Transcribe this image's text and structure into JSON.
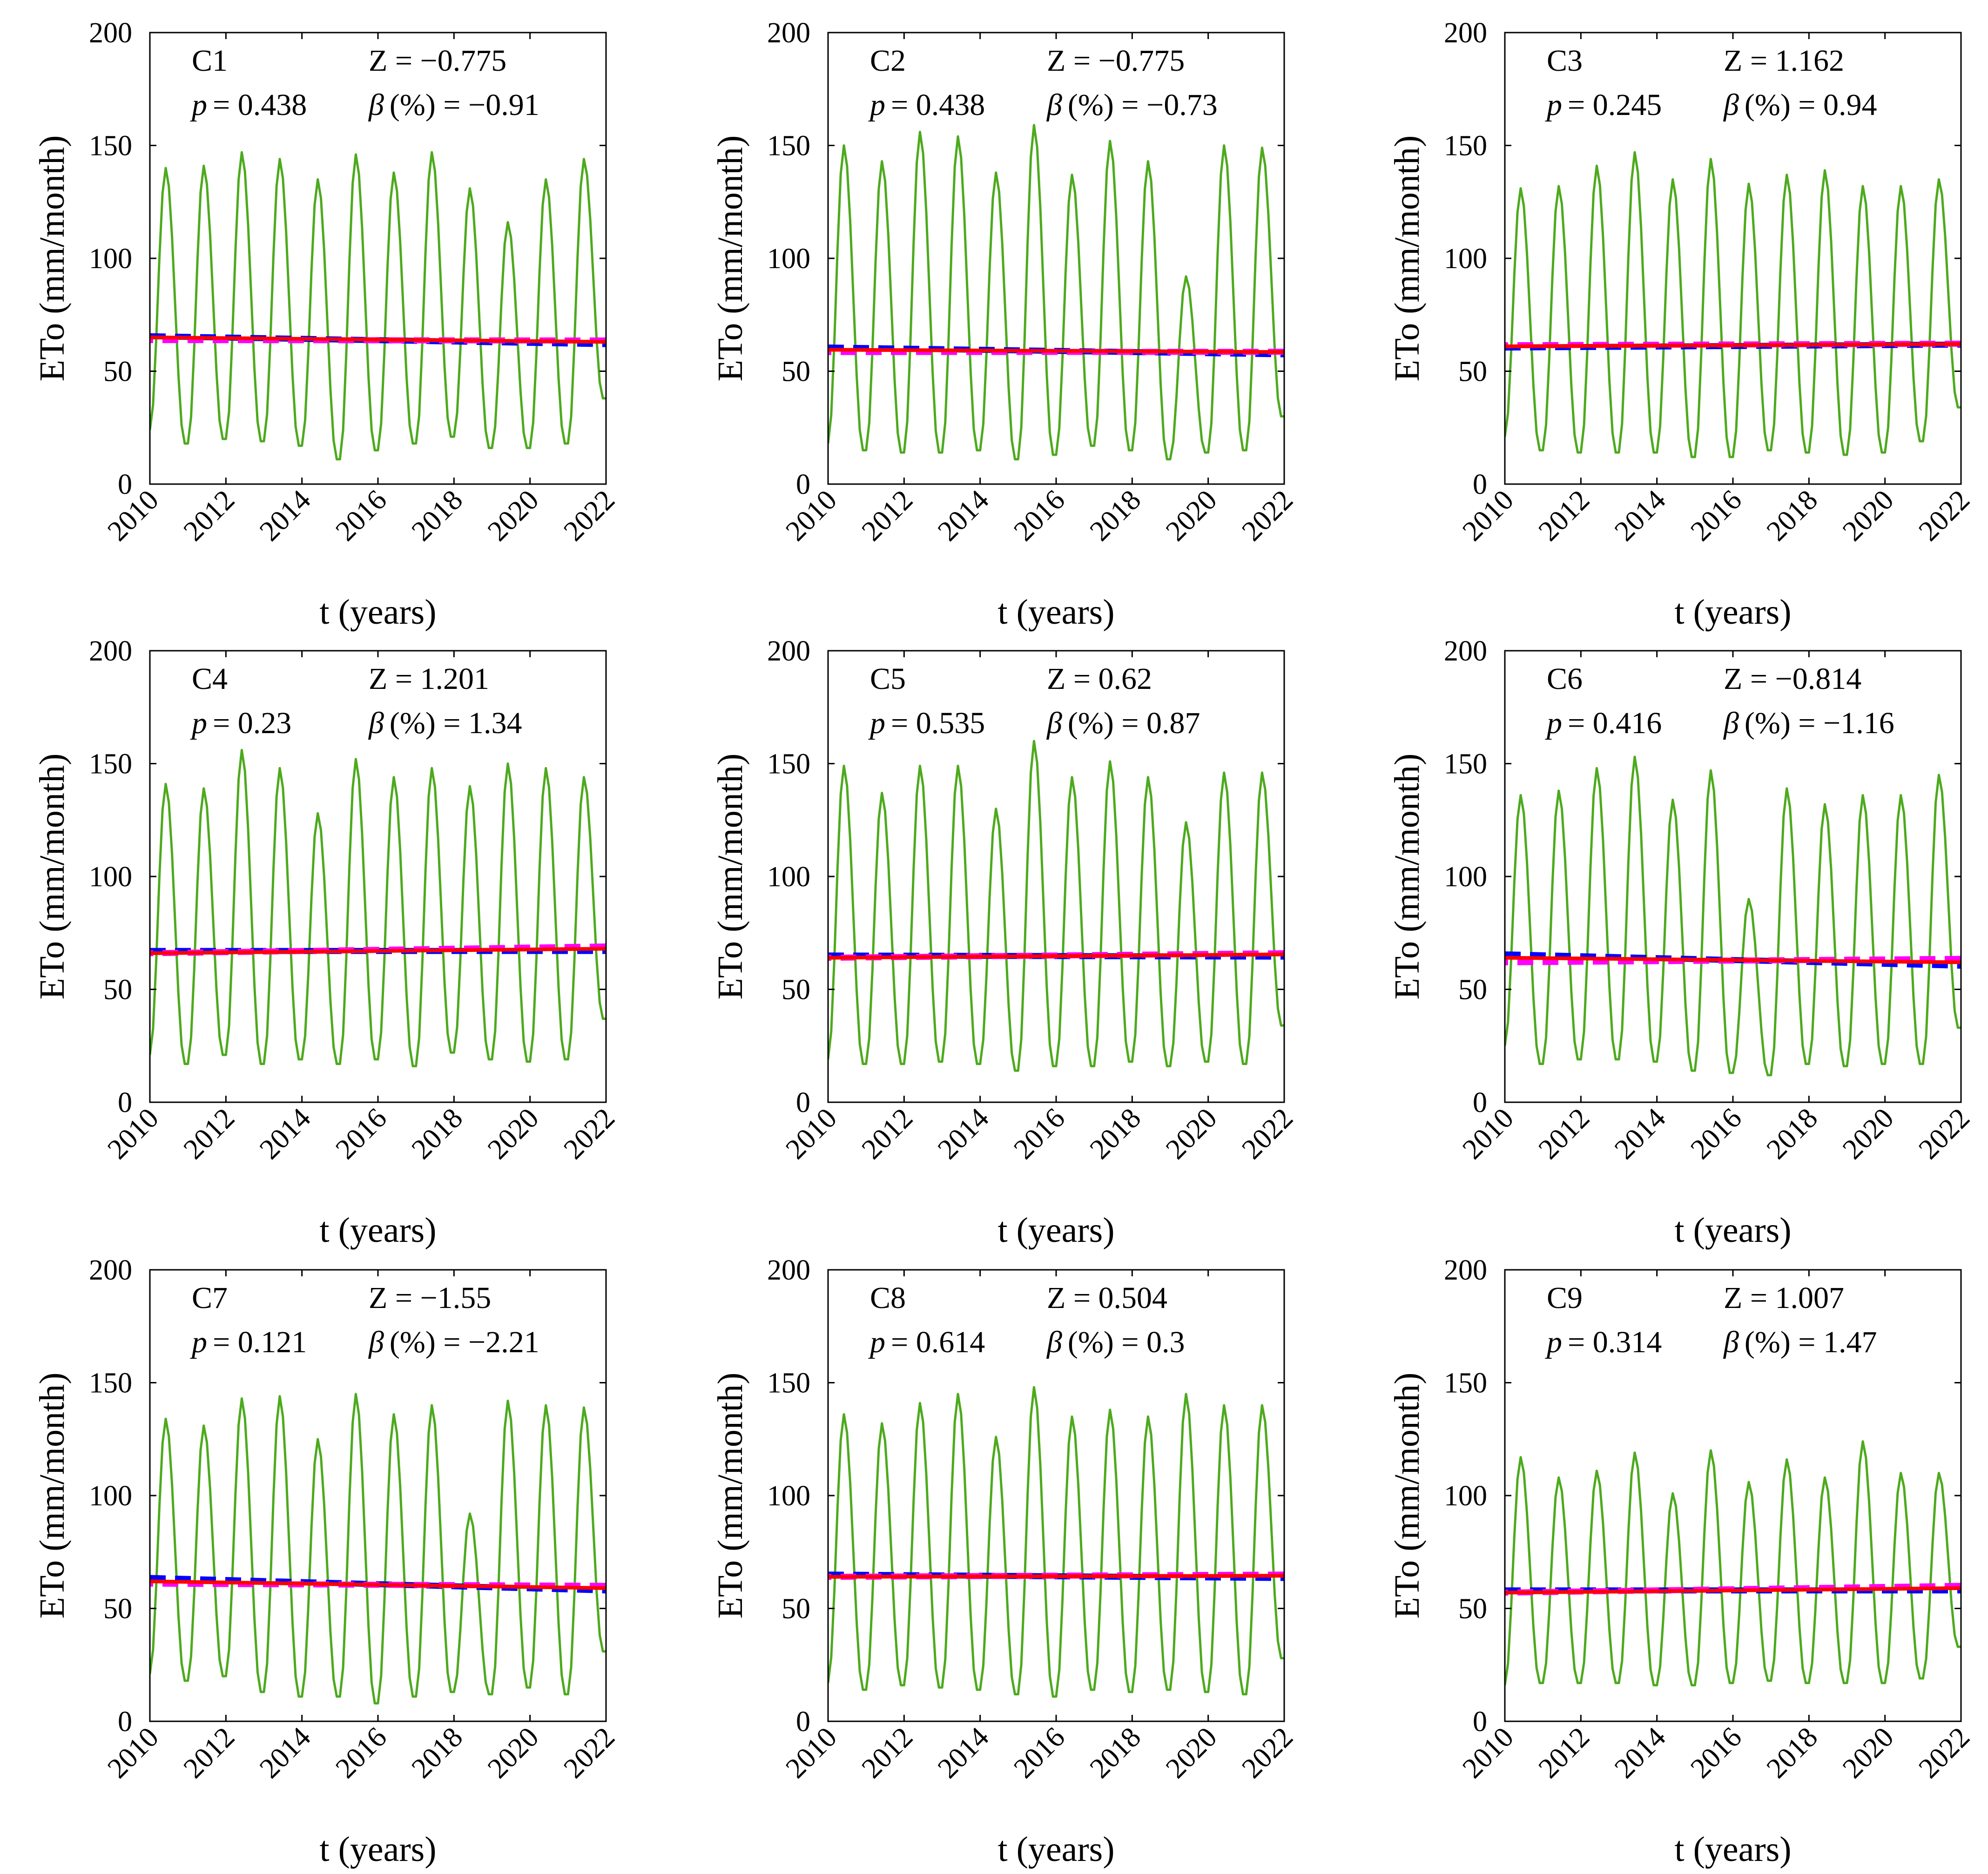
{
  "colors": {
    "eto": "#4daa1e",
    "trend": "#ff0000",
    "dashed_blue": "#0000ff",
    "dashed_magenta": "#ff00ff",
    "axis": "#000000"
  },
  "chart_data": [
    {
      "type": "line",
      "id": "C1",
      "label": "C1",
      "z_text": "Z = −0.775",
      "p_text": "= 0.438",
      "beta_text": "(%) = −0.91",
      "amp": 1.0,
      "trend": [
        65,
        63
      ],
      "blue": [
        65.5,
        62.0
      ],
      "magenta": [
        63.8,
        63.6
      ],
      "xlim": [
        2010,
        2022
      ],
      "ylim": [
        0,
        200
      ],
      "xlabel": "t (years)",
      "ylabel": "ETo (mm/month)",
      "x_ticks": [
        "2010",
        "2012",
        "2014",
        "2016",
        "2018",
        "2020",
        "2022"
      ],
      "y_ticks": [
        "0",
        "50",
        "100",
        "150",
        "200"
      ],
      "peaks": [
        140,
        141,
        147,
        144,
        135,
        146,
        138,
        147,
        131,
        116,
        135,
        144
      ],
      "troughs": [
        24,
        18,
        20,
        19,
        17,
        11,
        15,
        18,
        21,
        16,
        16,
        18,
        38
      ]
    },
    {
      "type": "line",
      "id": "C2",
      "label": "C2",
      "z_text": "Z = −0.775",
      "p_text": "= 0.438",
      "beta_text": "(%) = −0.73",
      "amp": 1.0,
      "trend": [
        59.5,
        58.5
      ],
      "blue": [
        60.5,
        57.5
      ],
      "magenta": [
        58.5,
        58.6
      ],
      "xlim": [
        2010,
        2022
      ],
      "ylim": [
        0,
        200
      ],
      "xlabel": "t (years)",
      "ylabel": "ETo (mm/month)",
      "x_ticks": [
        "2010",
        "2012",
        "2014",
        "2016",
        "2018",
        "2020",
        "2022"
      ],
      "y_ticks": [
        "0",
        "50",
        "100",
        "150",
        "200"
      ],
      "peaks": [
        150,
        143,
        156,
        154,
        138,
        159,
        137,
        152,
        143,
        92,
        150,
        149
      ],
      "troughs": [
        18,
        15,
        14,
        14,
        15,
        11,
        13,
        17,
        15,
        11,
        14,
        15,
        30
      ]
    },
    {
      "type": "line",
      "id": "C3",
      "label": "C3",
      "z_text": "Z = 1.162",
      "p_text": "= 0.245",
      "beta_text": "(%) = 0.94",
      "amp": 1.0,
      "trend": [
        61,
        62
      ],
      "blue": [
        60.5,
        61.8
      ],
      "magenta": [
        61.5,
        62.2
      ],
      "xlim": [
        2010,
        2022
      ],
      "ylim": [
        0,
        200
      ],
      "xlabel": "t (years)",
      "ylabel": "ETo (mm/month)",
      "x_ticks": [
        "2010",
        "2012",
        "2014",
        "2016",
        "2018",
        "2020",
        "2022"
      ],
      "y_ticks": [
        "0",
        "50",
        "100",
        "150",
        "200"
      ],
      "peaks": [
        131,
        132,
        141,
        147,
        135,
        144,
        133,
        137,
        139,
        132,
        132,
        135
      ],
      "troughs": [
        21,
        15,
        14,
        14,
        14,
        12,
        12,
        15,
        14,
        13,
        14,
        19,
        34
      ]
    },
    {
      "type": "line",
      "id": "C4",
      "label": "C4",
      "z_text": "Z = 1.201",
      "p_text": "= 0.23",
      "beta_text": "(%) = 1.34",
      "amp": 1.0,
      "trend": [
        66,
        68
      ],
      "blue": [
        67.0,
        67.0
      ],
      "magenta": [
        66.0,
        69.0
      ],
      "xlim": [
        2010,
        2022
      ],
      "ylim": [
        0,
        200
      ],
      "xlabel": "t (years)",
      "ylabel": "ETo (mm/month)",
      "x_ticks": [
        "2010",
        "2012",
        "2014",
        "2016",
        "2018",
        "2020",
        "2022"
      ],
      "y_ticks": [
        "0",
        "50",
        "100",
        "150",
        "200"
      ],
      "peaks": [
        141,
        139,
        156,
        148,
        128,
        152,
        144,
        148,
        140,
        150,
        148,
        144
      ],
      "troughs": [
        21,
        17,
        21,
        17,
        19,
        17,
        19,
        16,
        22,
        19,
        18,
        19,
        37
      ]
    },
    {
      "type": "line",
      "id": "C5",
      "label": "C5",
      "z_text": "Z = 0.62",
      "p_text": "= 0.535",
      "beta_text": "(%) = 0.87",
      "amp": 1.0,
      "trend": [
        64,
        65.5
      ],
      "blue": [
        65.0,
        64.5
      ],
      "magenta": [
        64.0,
        66.0
      ],
      "xlim": [
        2010,
        2022
      ],
      "ylim": [
        0,
        200
      ],
      "xlabel": "t (years)",
      "ylabel": "ETo (mm/month)",
      "x_ticks": [
        "2010",
        "2012",
        "2014",
        "2016",
        "2018",
        "2020",
        "2022"
      ],
      "y_ticks": [
        "0",
        "50",
        "100",
        "150",
        "200"
      ],
      "peaks": [
        149,
        137,
        149,
        149,
        130,
        160,
        144,
        151,
        144,
        124,
        146,
        146
      ],
      "troughs": [
        19,
        17,
        17,
        18,
        17,
        14,
        16,
        16,
        18,
        16,
        18,
        17,
        34
      ]
    },
    {
      "type": "line",
      "id": "C6",
      "label": "C6",
      "z_text": "Z = −0.814",
      "p_text": "= 0.416",
      "beta_text": "(%) = −1.16",
      "amp": 1.0,
      "trend": [
        64,
        62
      ],
      "blue": [
        65.5,
        60.5
      ],
      "magenta": [
        62.0,
        63.5
      ],
      "xlim": [
        2010,
        2022
      ],
      "ylim": [
        0,
        200
      ],
      "xlabel": "t (years)",
      "ylabel": "ETo (mm/month)",
      "x_ticks": [
        "2010",
        "2012",
        "2014",
        "2016",
        "2018",
        "2020",
        "2022"
      ],
      "y_ticks": [
        "0",
        "50",
        "100",
        "150",
        "200"
      ],
      "peaks": [
        136,
        138,
        148,
        153,
        134,
        147,
        90,
        139,
        132,
        136,
        136,
        145
      ],
      "troughs": [
        25,
        17,
        19,
        19,
        18,
        14,
        13,
        12,
        17,
        16,
        17,
        17,
        33
      ]
    },
    {
      "type": "line",
      "id": "C7",
      "label": "C7",
      "z_text": "Z = −1.55",
      "p_text": "= 0.121",
      "beta_text": "(%) = −2.21",
      "amp": 1.0,
      "trend": [
        62,
        59
      ],
      "blue": [
        63.5,
        58.0
      ],
      "magenta": [
        61.0,
        60.0
      ],
      "xlim": [
        2010,
        2022
      ],
      "ylim": [
        0,
        200
      ],
      "xlabel": "t (years)",
      "ylabel": "ETo (mm/month)",
      "x_ticks": [
        "2010",
        "2012",
        "2014",
        "2016",
        "2018",
        "2020",
        "2022"
      ],
      "y_ticks": [
        "0",
        "50",
        "100",
        "150",
        "200"
      ],
      "peaks": [
        134,
        131,
        143,
        144,
        125,
        145,
        136,
        140,
        92,
        142,
        140,
        139
      ],
      "troughs": [
        21,
        18,
        20,
        13,
        11,
        11,
        8,
        11,
        13,
        12,
        15,
        12,
        31
      ]
    },
    {
      "type": "line",
      "id": "C8",
      "label": "C8",
      "z_text": "Z = 0.504",
      "p_text": "= 0.614",
      "beta_text": "(%) = 0.3",
      "amp": 1.0,
      "trend": [
        64,
        64.5
      ],
      "blue": [
        65.0,
        63.5
      ],
      "magenta": [
        64.0,
        65.0
      ],
      "xlim": [
        2010,
        2022
      ],
      "ylim": [
        0,
        200
      ],
      "xlabel": "t (years)",
      "ylabel": "ETo (mm/month)",
      "x_ticks": [
        "2010",
        "2012",
        "2014",
        "2016",
        "2018",
        "2020",
        "2022"
      ],
      "y_ticks": [
        "0",
        "50",
        "100",
        "150",
        "200"
      ],
      "peaks": [
        136,
        132,
        141,
        145,
        126,
        148,
        135,
        138,
        135,
        145,
        140,
        140
      ],
      "troughs": [
        17,
        14,
        16,
        15,
        14,
        12,
        11,
        14,
        13,
        14,
        13,
        12,
        28
      ]
    },
    {
      "type": "line",
      "id": "C9",
      "label": "C9",
      "z_text": "Z = 1.007",
      "p_text": "= 0.314",
      "beta_text": "(%) = 1.47",
      "amp": 1.0,
      "trend": [
        57,
        59
      ],
      "blue": [
        58.0,
        58.0
      ],
      "magenta": [
        57.0,
        60.0
      ],
      "xlim": [
        2010,
        2022
      ],
      "ylim": [
        0,
        200
      ],
      "xlabel": "t (years)",
      "ylabel": "ETo (mm/month)",
      "x_ticks": [
        "2010",
        "2012",
        "2014",
        "2016",
        "2018",
        "2020",
        "2022"
      ],
      "y_ticks": [
        "0",
        "50",
        "100",
        "150",
        "200"
      ],
      "peaks": [
        117,
        108,
        111,
        119,
        101,
        120,
        106,
        116,
        108,
        124,
        110,
        110
      ],
      "troughs": [
        16,
        17,
        17,
        17,
        16,
        16,
        17,
        18,
        17,
        17,
        17,
        19,
        33
      ]
    }
  ]
}
